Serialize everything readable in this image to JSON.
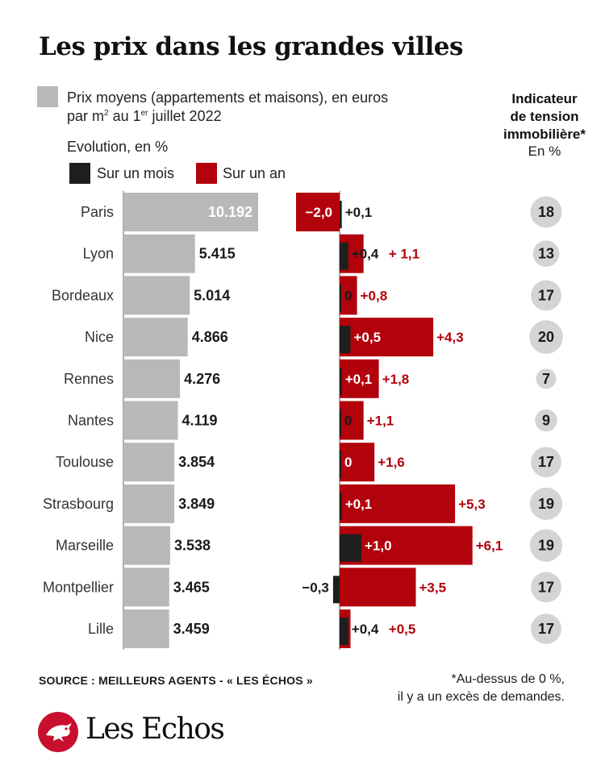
{
  "title": "Les prix dans les grandes villes",
  "legend": {
    "price_label_1": "Prix moyens (appartements et maisons), en euros",
    "price_label_2_pre": "par m",
    "price_label_2_sup": "2",
    "price_label_2_mid": " au 1",
    "price_label_2_sup2": "er",
    "price_label_2_post": " juillet 2022",
    "evolution_label": "Evolution, en %",
    "month_label": "Sur un mois",
    "year_label": "Sur un an"
  },
  "indicator": {
    "title_line1": "Indicateur",
    "title_line2": "de tension",
    "title_line3": "immobilière*",
    "unit": "En %"
  },
  "colors": {
    "price_bar": "#b9b8b8",
    "month_bar": "#1e1e1e",
    "year_bar": "#b2020c",
    "year_text": "#b2020c",
    "circle": "#d4d4d4",
    "logo": "#c8102e"
  },
  "chart_data": {
    "type": "bar",
    "categories": [
      "Paris",
      "Lyon",
      "Bordeaux",
      "Nice",
      "Rennes",
      "Nantes",
      "Toulouse",
      "Strasbourg",
      "Marseille",
      "Montpellier",
      "Lille"
    ],
    "price_labels": [
      "10.192",
      "5.415",
      "5.014",
      "4.866",
      "4.276",
      "4.119",
      "3.854",
      "3.849",
      "3.538",
      "3.465",
      "3.459"
    ],
    "month_labels": [
      "+0,1",
      "+0,4",
      "0",
      "+0,5",
      "+0,1",
      "0",
      "0",
      "+0,1",
      "+1,0",
      "−0,3",
      "+0,4"
    ],
    "year_labels": [
      "−2,0",
      "+ 1,1",
      "+0,8",
      "+4,3",
      "+1,8",
      "+1,1",
      "+1,6",
      "+5,3",
      "+6,1",
      "+3,5",
      "+0,5"
    ],
    "tension_labels": [
      "18",
      "13",
      "17",
      "20",
      "7",
      "9",
      "17",
      "19",
      "19",
      "17",
      "17"
    ],
    "series": [
      {
        "name": "Prix moyens (appartements et maisons), en euros par m2 au 1er juillet 2022",
        "values": [
          10192,
          5415,
          5014,
          4866,
          4276,
          4119,
          3854,
          3849,
          3538,
          3465,
          3459
        ]
      },
      {
        "name": "Sur un mois",
        "values": [
          0.1,
          0.4,
          0,
          0.5,
          0.1,
          0,
          0,
          0.1,
          1.0,
          -0.3,
          0.4
        ]
      },
      {
        "name": "Sur un an",
        "values": [
          -2.0,
          1.1,
          0.8,
          4.3,
          1.8,
          1.1,
          1.6,
          5.3,
          6.1,
          3.5,
          0.5
        ]
      },
      {
        "name": "Indicateur de tension immobilière*",
        "values": [
          18,
          13,
          17,
          20,
          7,
          9,
          17,
          19,
          19,
          17,
          17
        ]
      }
    ]
  },
  "footer": {
    "source": "SOURCE : MEILLEURS AGENTS - « LES ÉCHOS »",
    "note_line1": "*Au-dessus de 0 %,",
    "note_line2": "il y a un excès de demandes.",
    "logo": "Les Echos"
  }
}
